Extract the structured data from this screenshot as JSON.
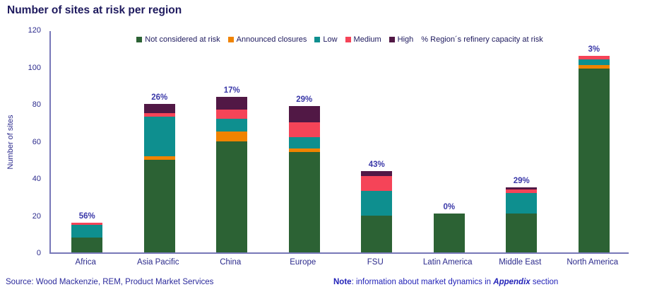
{
  "title": "Number of sites at risk per region",
  "chart_data": {
    "type": "bar",
    "stacked": true,
    "title": "Number of sites at risk per region",
    "xlabel": "",
    "ylabel": "Number of sites",
    "ylim": [
      0,
      120
    ],
    "yticks": [
      0,
      20,
      40,
      60,
      80,
      100,
      120
    ],
    "grid": false,
    "legend_position": "top",
    "categories": [
      "Africa",
      "Asia Pacific",
      "China",
      "Europe",
      "FSU",
      "Latin America",
      "Middle East",
      "North America"
    ],
    "series": [
      {
        "name": "Not considered at risk",
        "color": "#2C6234",
        "values": [
          8,
          50,
          60,
          54,
          20,
          21,
          21,
          99
        ]
      },
      {
        "name": "Announced closures",
        "color": "#F08300",
        "values": [
          0,
          2,
          5,
          2,
          0,
          0,
          0,
          2
        ]
      },
      {
        "name": "Low",
        "color": "#0E8F8F",
        "values": [
          7,
          21,
          7,
          6,
          13,
          0,
          11,
          3
        ]
      },
      {
        "name": "Medium",
        "color": "#F54458",
        "values": [
          1,
          2,
          5,
          8,
          8,
          0,
          2,
          2
        ]
      },
      {
        "name": "High",
        "color": "#511845",
        "values": [
          0,
          5,
          7,
          9,
          3,
          0,
          1,
          0
        ]
      }
    ],
    "bar_totals": [
      16,
      80,
      84,
      79,
      44,
      21,
      35,
      106
    ],
    "capacity_at_risk_labels": [
      "56%",
      "26%",
      "17%",
      "29%",
      "43%",
      "0%",
      "29%",
      "3%"
    ],
    "legend_extra": "% Region´s refinery capacity at risk"
  },
  "footer": {
    "source": "Source: Wood Mackenzie, REM, Product Market Services",
    "note_bold": "Note",
    "note_mid": ": information about market dynamics in ",
    "note_appendix": "Appendix",
    "note_suffix": " section"
  },
  "colors": {
    "title_text": "#1E1A5E",
    "axis_text": "#2B2A8C",
    "pct_label_text": "#3A38A8",
    "axis_line": "#7878B8",
    "source_text": "#2B2A9C",
    "note_text": "#2222B8"
  }
}
